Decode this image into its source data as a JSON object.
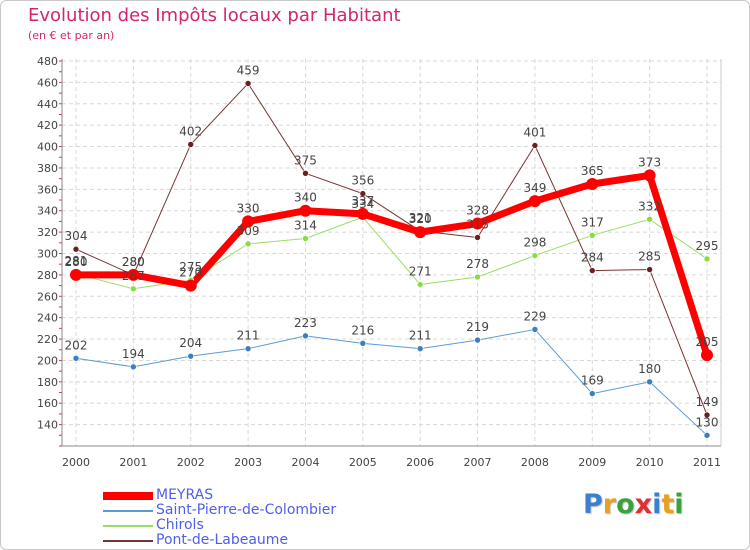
{
  "chart_data": {
    "type": "line",
    "title": "Evolution des Impôts locaux par Habitant",
    "subtitle": "(en € et par an)",
    "xlabel": "",
    "ylabel": "",
    "categories": [
      "2000",
      "2001",
      "2002",
      "2003",
      "2004",
      "2005",
      "2006",
      "2007",
      "2008",
      "2009",
      "2010",
      "2011"
    ],
    "ylim": [
      120,
      480
    ],
    "yticks": [
      140,
      160,
      180,
      200,
      220,
      240,
      260,
      280,
      300,
      320,
      340,
      360,
      380,
      400,
      420,
      440,
      460,
      480
    ],
    "ytick_labels": [
      "140",
      "160",
      "180",
      "200",
      "220",
      "240",
      "260",
      "280",
      "300",
      "320",
      "340",
      "360",
      "380",
      "400",
      "420",
      "440",
      "460",
      "480"
    ],
    "grid": true,
    "legend_position": "bottom-left",
    "series": [
      {
        "name": "Saint-Pierre-de-Colombier",
        "color": "#5b9bd5",
        "marker": "#3a7fc1",
        "width": 1,
        "values": [
          202,
          194,
          204,
          211,
          223,
          216,
          211,
          219,
          229,
          169,
          180,
          130
        ]
      },
      {
        "name": "Chirols",
        "color": "#99dd66",
        "marker": "#88dd44",
        "width": 1,
        "values": [
          281,
          267,
          275,
          309,
          314,
          334,
          271,
          278,
          298,
          317,
          332,
          295
        ]
      },
      {
        "name": "Pont-de-Labeaume",
        "color": "#7a3333",
        "marker": "#6b1f1f",
        "width": 1,
        "values": [
          304,
          280,
          402,
          459,
          375,
          356,
          321,
          315,
          401,
          284,
          285,
          149
        ]
      },
      {
        "name": "MEYRAS",
        "color": "#ff0000",
        "marker": "#ff0000",
        "width": 7,
        "values": [
          280,
          280,
          270,
          330,
          340,
          337,
          320,
          328,
          349,
          365,
          373,
          205
        ]
      }
    ],
    "legend_order": [
      "MEYRAS",
      "Saint-Pierre-de-Colombier",
      "Chirols",
      "Pont-de-Labeaume"
    ],
    "data_labels": {
      "Saint-Pierre-de-Colombier": [
        "202",
        "194",
        "204",
        "211",
        "223",
        "216",
        "211",
        "219",
        "229",
        "169",
        "180",
        "130"
      ],
      "Chirols": [
        "281",
        "267",
        "275",
        "309",
        "314",
        "334",
        "271",
        "278",
        "298",
        "317",
        "332",
        "295"
      ],
      "Pont-de-Labeaume": [
        "304",
        "280",
        "402",
        "459",
        "375",
        "356",
        "321",
        "315",
        "401",
        "284",
        "285",
        "149"
      ],
      "MEYRAS": [
        "280",
        "280",
        "270",
        "330",
        "340",
        "337",
        "320",
        "328",
        "349",
        "365",
        "373",
        "205"
      ]
    }
  },
  "logo": {
    "letters": [
      {
        "ch": "P",
        "color": "#3a7fd0"
      },
      {
        "ch": "r",
        "color": "#e8a020"
      },
      {
        "ch": "o",
        "color": "#3aa040"
      },
      {
        "ch": "x",
        "color": "#e03030"
      },
      {
        "ch": "i",
        "color": "#3a7fd0"
      },
      {
        "ch": "t",
        "color": "#e8a020"
      },
      {
        "ch": "i",
        "color": "#3aa040"
      }
    ]
  }
}
